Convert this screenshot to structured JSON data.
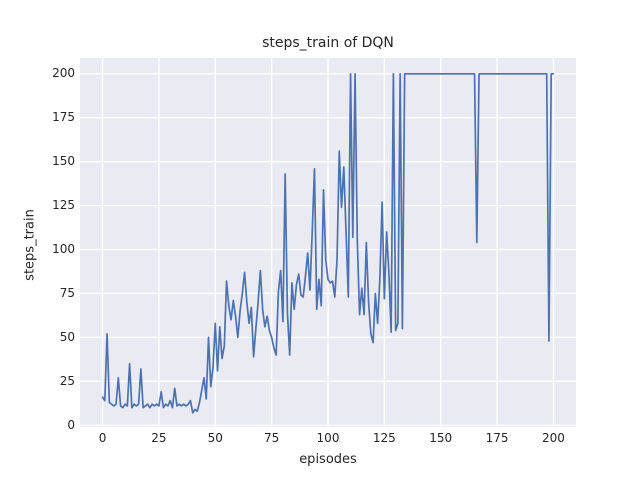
{
  "chart_data": {
    "type": "line",
    "title": "steps_train of DQN",
    "xlabel": "episodes",
    "ylabel": "steps_train",
    "x_start": 0,
    "x_step": 1,
    "series": [
      {
        "name": "steps_train",
        "values": [
          16,
          14,
          52,
          13,
          12,
          11,
          12,
          27,
          11,
          10,
          12,
          11,
          35,
          10,
          12,
          11,
          12,
          32,
          10,
          11,
          12,
          10,
          12,
          11,
          12,
          11,
          19,
          10,
          12,
          11,
          14,
          10,
          21,
          11,
          12,
          11,
          12,
          11,
          12,
          14,
          7,
          9,
          8,
          13,
          20,
          27,
          15,
          50,
          22,
          33,
          58,
          31,
          56,
          38,
          45,
          82,
          68,
          60,
          71,
          62,
          50,
          65,
          75,
          87,
          70,
          58,
          67,
          39,
          55,
          70,
          88,
          66,
          56,
          62,
          54,
          50,
          44,
          40,
          76,
          88,
          59,
          143,
          64,
          40,
          81,
          66,
          80,
          86,
          74,
          73,
          85,
          98,
          77,
          110,
          146,
          66,
          83,
          68,
          134,
          94,
          83,
          81,
          82,
          73,
          94,
          156,
          124,
          147,
          110,
          73,
          200,
          107,
          200,
          105,
          63,
          78,
          63,
          104,
          70,
          52,
          47,
          75,
          58,
          83,
          127,
          72,
          110,
          87,
          53,
          200,
          54,
          58,
          200,
          55,
          200,
          200,
          200,
          200,
          200,
          200,
          200,
          200,
          200,
          200,
          200,
          200,
          200,
          200,
          200,
          200,
          200,
          200,
          200,
          200,
          200,
          200,
          200,
          200,
          200,
          200,
          200,
          200,
          200,
          200,
          200,
          200,
          104,
          200,
          200,
          200,
          200,
          200,
          200,
          200,
          200,
          200,
          200,
          200,
          200,
          200,
          200,
          200,
          200,
          200,
          200,
          200,
          200,
          200,
          200,
          200,
          200,
          200,
          200,
          200,
          200,
          200,
          200,
          200,
          48,
          200,
          200
        ]
      }
    ],
    "xticks": [
      0,
      25,
      50,
      75,
      100,
      125,
      150,
      175,
      200
    ],
    "yticks": [
      0,
      25,
      50,
      75,
      100,
      125,
      150,
      175,
      200
    ],
    "xlim": [
      -10,
      210
    ],
    "ylim": [
      -1,
      209
    ],
    "grid": true,
    "legend": false,
    "style": {
      "line_color": "#4C72B0",
      "axes_background": "#EAEAF2",
      "grid_color": "#FFFFFF",
      "figure_background": "#FFFFFF",
      "text_color": "#262626"
    }
  }
}
